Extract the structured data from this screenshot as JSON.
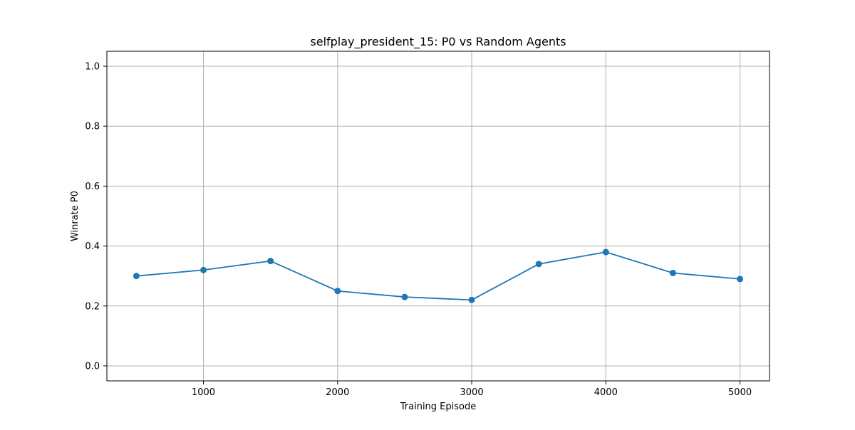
{
  "chart_data": {
    "type": "line",
    "title": "selfplay_president_15: P0 vs Random Agents",
    "xlabel": "Training Episode",
    "ylabel": "Winrate P0",
    "xlim": [
      280,
      5220
    ],
    "ylim": [
      -0.05,
      1.05
    ],
    "x_ticks": [
      1000,
      2000,
      3000,
      4000,
      5000
    ],
    "x_tick_labels": [
      "1000",
      "2000",
      "3000",
      "4000",
      "5000"
    ],
    "y_ticks": [
      0.0,
      0.2,
      0.4,
      0.6,
      0.8,
      1.0
    ],
    "y_tick_labels": [
      "0.0",
      "0.2",
      "0.4",
      "0.6",
      "0.8",
      "1.0"
    ],
    "grid": true,
    "series": [
      {
        "x": [
          500,
          1000,
          1500,
          2000,
          2500,
          3000,
          3500,
          4000,
          4500,
          5000
        ],
        "values": [
          0.3,
          0.32,
          0.35,
          0.25,
          0.23,
          0.22,
          0.34,
          0.38,
          0.31,
          0.29
        ],
        "color": "#1f77b4",
        "marker": "circle"
      }
    ]
  }
}
